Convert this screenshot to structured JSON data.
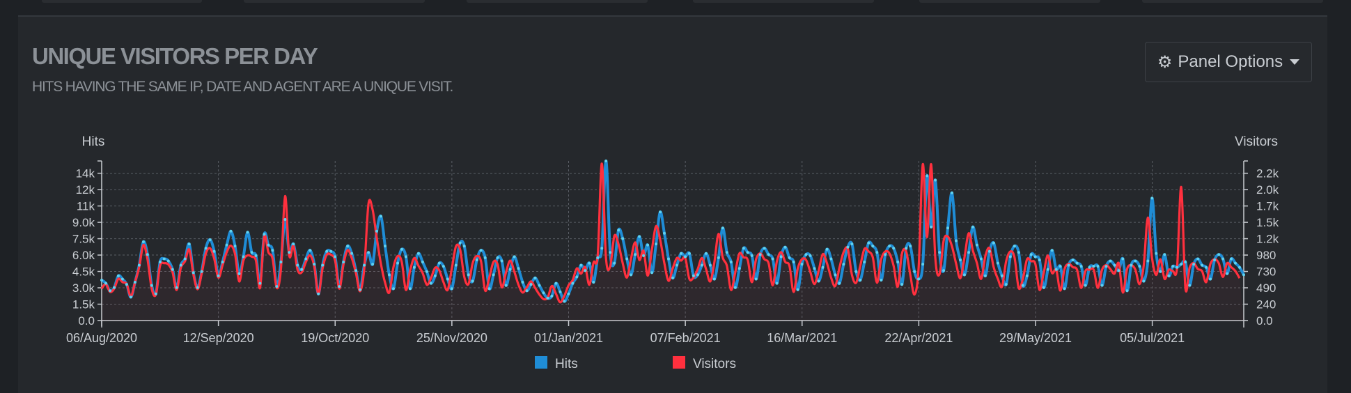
{
  "panel": {
    "title": "UNIQUE VISITORS PER DAY",
    "subtitle": "HITS HAVING THE SAME IP, DATE AND AGENT ARE A UNIQUE VISIT.",
    "options_label": "Panel Options",
    "options_icon": "gear-icon",
    "caret_icon": "caret-down-icon"
  },
  "colors": {
    "hits": "#1f8dd6",
    "visitors": "#ff303e",
    "background": "#25282c",
    "dots": "#5fd2f0"
  },
  "chart_data": {
    "type": "line",
    "y_axis_left_label": "Hits",
    "y_axis_right_label": "Visitors",
    "y_left_ticks": [
      "0.0",
      "1.5k",
      "3.0k",
      "4.5k",
      "6.0k",
      "7.5k",
      "9.0k",
      "11k",
      "12k",
      "14k"
    ],
    "y_right_ticks": [
      "0.0",
      "240",
      "490",
      "730",
      "980",
      "1.2k",
      "1.5k",
      "1.7k",
      "2.0k",
      "2.2k"
    ],
    "y_left_max": 15000,
    "y_right_max": 2450,
    "x_tick_labels": [
      "06/Aug/2020",
      "12/Sep/2020",
      "19/Oct/2020",
      "25/Nov/2020",
      "01/Jan/2021",
      "07/Feb/2021",
      "16/Mar/2021",
      "22/Apr/2021",
      "29/May/2021",
      "05/Jul/2021"
    ],
    "x_start_date": "2020-08-06",
    "x_end_date": "2021-08-03",
    "grid": true,
    "legend_position": "bottom",
    "series": [
      {
        "name": "Hits",
        "color": "#1f8dd6",
        "values": [
          3800,
          3500,
          2800,
          3100,
          4200,
          3900,
          3400,
          2200,
          3600,
          5200,
          7400,
          6200,
          3300,
          2500,
          5500,
          5800,
          5600,
          4800,
          3100,
          5200,
          5800,
          7200,
          4500,
          3100,
          4600,
          6800,
          7600,
          6500,
          4200,
          5500,
          7100,
          8400,
          7000,
          4400,
          6000,
          8300,
          6400,
          6100,
          3500,
          8100,
          7100,
          6600,
          3200,
          5500,
          9500,
          6400,
          7200,
          5200,
          4800,
          5800,
          6600,
          5300,
          2500,
          5200,
          6500,
          6500,
          6000,
          3200,
          5500,
          7000,
          6300,
          4700,
          2900,
          5200,
          6400,
          5300,
          8400,
          9800,
          7000,
          4300,
          3000,
          5400,
          6700,
          6000,
          3000,
          5000,
          6300,
          5500,
          4600,
          3500,
          4200,
          5400,
          5100,
          3900,
          3000,
          5200,
          7300,
          7000,
          4300,
          3700,
          5700,
          6600,
          5900,
          3000,
          4300,
          5900,
          5600,
          3300,
          4800,
          6000,
          4900,
          3600,
          2800,
          3400,
          4000,
          3300,
          2600,
          2100,
          2300,
          3500,
          2700,
          1800,
          2500,
          3500,
          4100,
          5200,
          4700,
          5400,
          3600,
          5900,
          6800,
          15300,
          6400,
          5400,
          8500,
          7700,
          5800,
          4300,
          6200,
          7900,
          6100,
          7100,
          4500,
          7200,
          10200,
          8200,
          5800,
          4000,
          5200,
          6300,
          6000,
          6300,
          4200,
          4300,
          5200,
          6300,
          5200,
          3900,
          5900,
          8700,
          6400,
          5500,
          3100,
          4900,
          6800,
          6400,
          6100,
          3900,
          6200,
          6800,
          6200,
          5800,
          3500,
          6000,
          6900,
          5900,
          5500,
          2900,
          5300,
          6200,
          6100,
          4900,
          3700,
          5000,
          6700,
          5800,
          4300,
          3500,
          5300,
          6900,
          7200,
          4600,
          3800,
          5500,
          7300,
          7000,
          6400,
          3800,
          6200,
          7000,
          6800,
          5500,
          3400,
          6800,
          7000,
          4600,
          3900,
          5300,
          13600,
          8800,
          13200,
          6400,
          4700,
          8700,
          12000,
          7500,
          5700,
          4300,
          6400,
          8800,
          7100,
          5800,
          4200,
          6500,
          7300,
          5400,
          4200,
          3400,
          6000,
          7000,
          6400,
          3300,
          4200,
          6200,
          6000,
          5700,
          3100,
          4800,
          6600,
          4800,
          5100,
          3000,
          5200,
          5700,
          5400,
          5100,
          3300,
          5000,
          5100,
          5100,
          3300,
          5100,
          5600,
          5200,
          4700,
          5800,
          2800,
          5200,
          5600,
          5100,
          3700,
          5600,
          11500,
          6300,
          4600,
          6200,
          4200,
          5100,
          5000,
          5300,
          5500,
          3300,
          5300,
          5800,
          5200,
          5000,
          3900,
          5700,
          6200,
          5800,
          4400,
          5800,
          5400,
          5000,
          4300
        ],
        "visitors_scaled_note": ""
      },
      {
        "name": "Visitors",
        "color": "#ff303e",
        "values": [
          490,
          560,
          440,
          490,
          640,
          590,
          560,
          370,
          590,
          820,
          1160,
          940,
          490,
          400,
          840,
          880,
          860,
          740,
          470,
          810,
          910,
          1090,
          710,
          480,
          720,
          1030,
          1110,
          950,
          660,
          850,
          1050,
          1150,
          1020,
          600,
          920,
          1000,
          980,
          920,
          500,
          1290,
          1050,
          950,
          500,
          790,
          1910,
          1000,
          1150,
          780,
          740,
          900,
          1000,
          830,
          410,
          800,
          1010,
          1010,
          920,
          490,
          860,
          1080,
          960,
          730,
          450,
          800,
          1790,
          1700,
          1270,
          870,
          580,
          430,
          820,
          990,
          900,
          470,
          770,
          960,
          840,
          730,
          550,
          650,
          810,
          770,
          590,
          470,
          800,
          1140,
          1090,
          670,
          560,
          880,
          990,
          910,
          460,
          660,
          900,
          860,
          510,
          740,
          920,
          750,
          550,
          430,
          510,
          600,
          500,
          400,
          330,
          350,
          530,
          410,
          280,
          380,
          540,
          620,
          800,
          720,
          820,
          550,
          890,
          1000,
          2410,
          960,
          830,
          1300,
          1170,
          880,
          660,
          950,
          1200,
          930,
          1070,
          690,
          1090,
          1450,
          1240,
          880,
          610,
          800,
          960,
          920,
          960,
          640,
          660,
          790,
          960,
          790,
          600,
          900,
          1330,
          970,
          840,
          470,
          740,
          1030,
          970,
          930,
          590,
          940,
          1030,
          940,
          880,
          540,
          910,
          1050,
          900,
          840,
          440,
          800,
          940,
          930,
          750,
          560,
          760,
          1020,
          880,
          660,
          530,
          810,
          1050,
          1100,
          700,
          580,
          840,
          1100,
          1060,
          970,
          580,
          940,
          1060,
          1030,
          840,
          520,
          1030,
          1060,
          700,
          400,
          810,
          2400,
          1280,
          2400,
          960,
          710,
          1230,
          1290,
          1140,
          870,
          650,
          970,
          1340,
          1080,
          880,
          640,
          990,
          1110,
          820,
          640,
          520,
          910,
          1060,
          970,
          500,
          640,
          940,
          910,
          870,
          470,
          730,
          1000,
          730,
          780,
          460,
          790,
          870,
          820,
          780,
          500,
          760,
          780,
          780,
          500,
          780,
          850,
          790,
          720,
          880,
          430,
          790,
          850,
          780,
          560,
          850,
          1580,
          960,
          700,
          940,
          640,
          780,
          760,
          810,
          2050,
          500,
          810,
          880,
          790,
          760,
          590,
          870,
          940,
          880,
          670,
          880,
          820,
          760,
          650
        ]
      }
    ]
  },
  "legend": {
    "items": [
      {
        "label": "Hits",
        "color": "#1f8dd6"
      },
      {
        "label": "Visitors",
        "color": "#ff303e"
      }
    ]
  }
}
